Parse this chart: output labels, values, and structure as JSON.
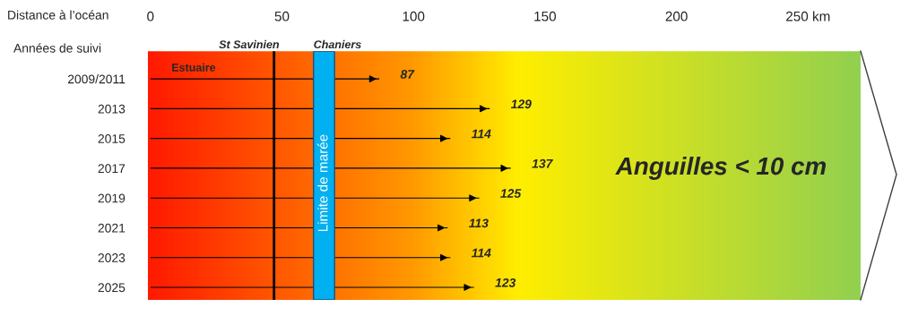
{
  "chart_data": {
    "type": "bar",
    "orientation": "horizontal",
    "xlabel": "Distance à l’océan",
    "ylabel": "Années de suivi",
    "categories": [
      "2009/2011",
      "2013",
      "2015",
      "2017",
      "2019",
      "2021",
      "2023",
      "2025"
    ],
    "values": [
      87,
      129,
      114,
      137,
      125,
      113,
      114,
      123
    ],
    "color": "#000000",
    "data_labels": true,
    "xlim": [
      -1,
      270
    ],
    "xticks": [
      0,
      50,
      100,
      150,
      200,
      {
        "value": 250,
        "label": "250 km"
      }
    ],
    "ref_lines": [
      {
        "axis": "x",
        "value": 47,
        "label": "St Savinien",
        "color": "#000000"
      }
    ],
    "bands": [
      {
        "axis": "x",
        "from": 62,
        "to": 70,
        "label": "Chaniers",
        "color": "#00b0f0"
      }
    ],
    "annotations": [
      "Estuaire",
      "Limite de marée",
      "Anguilles < 10 cm"
    ],
    "grid": false,
    "legend": false
  }
}
